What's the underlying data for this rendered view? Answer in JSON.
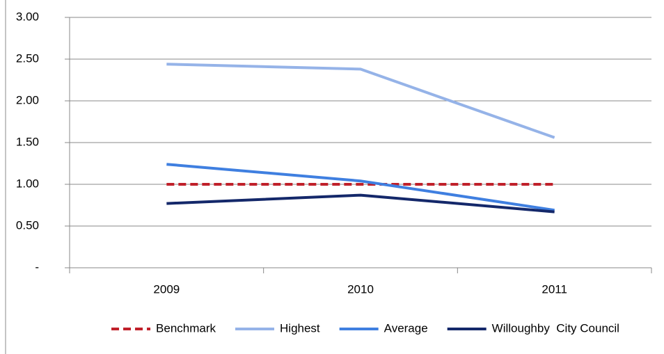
{
  "chart_data": {
    "type": "line",
    "categories": [
      "2009",
      "2010",
      "2011"
    ],
    "series": [
      {
        "name": "Benchmark",
        "color": "#c0202a",
        "dash": true,
        "values": [
          1.0,
          1.0,
          1.0
        ]
      },
      {
        "name": "Highest",
        "color": "#95b3e8",
        "dash": false,
        "values": [
          2.44,
          2.38,
          1.56
        ]
      },
      {
        "name": "Average",
        "color": "#3f7fe0",
        "dash": false,
        "values": [
          1.24,
          1.04,
          0.69
        ]
      },
      {
        "name": "Willoughby  City Council",
        "color": "#14286a",
        "dash": false,
        "values": [
          0.77,
          0.87,
          0.67
        ]
      }
    ],
    "ylim": [
      0,
      3
    ],
    "yticks": [
      {
        "value": 0,
        "label": "-"
      },
      {
        "value": 0.5,
        "label": "0.50"
      },
      {
        "value": 1,
        "label": "1.00"
      },
      {
        "value": 1.5,
        "label": "1.50"
      },
      {
        "value": 2,
        "label": "2.00"
      },
      {
        "value": 2.5,
        "label": "2.50"
      },
      {
        "value": 3,
        "label": "3.00"
      }
    ],
    "grid": true,
    "legend": "bottom"
  }
}
